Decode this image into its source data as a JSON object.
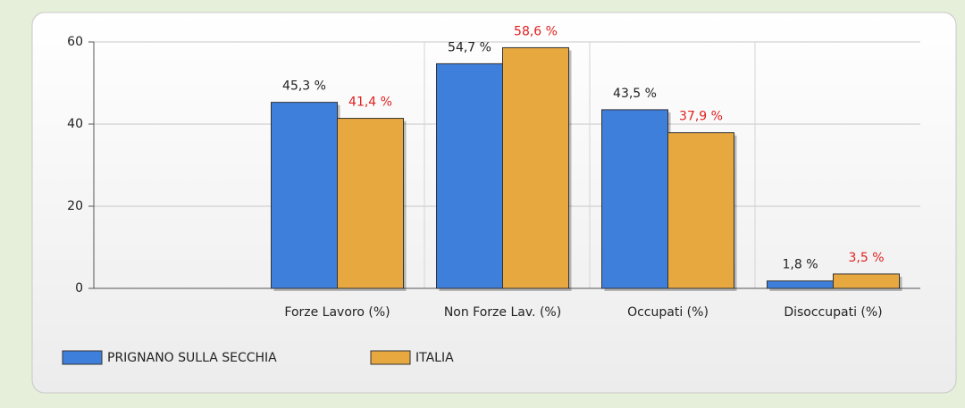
{
  "chart_data": {
    "type": "bar",
    "categories": [
      "Forze Lavoro (%)",
      "Non Forze Lav. (%)",
      "Occupati (%)",
      "Disoccupati (%)"
    ],
    "series": [
      {
        "name": "PRIGNANO SULLA SECCHIA",
        "color": "#3f7fdc",
        "label_color": "#222222",
        "values": [
          45.3,
          54.7,
          43.5,
          1.8
        ],
        "value_labels": [
          "45,3 %",
          "54,7 %",
          "43,5 %",
          "1,8 %"
        ]
      },
      {
        "name": "ITALIA",
        "color": "#e8a840",
        "label_color": "#e02020",
        "values": [
          41.4,
          58.6,
          37.9,
          3.5
        ],
        "value_labels": [
          "41,4 %",
          "58,6 %",
          "37,9 %",
          "3,5 %"
        ]
      }
    ],
    "ylim": [
      0,
      60
    ],
    "yticks": [
      0,
      20,
      40,
      60
    ],
    "grid": true,
    "legend": "bottom-left"
  }
}
